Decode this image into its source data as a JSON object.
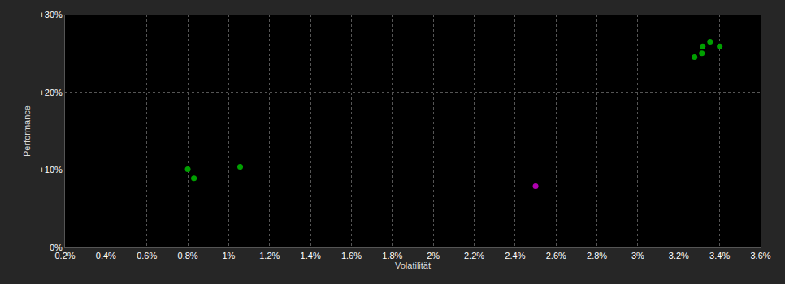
{
  "chart_data": {
    "type": "scatter",
    "x_label": "Volatilität",
    "y_label": "Performance",
    "series": [
      {
        "color": "#00a000",
        "marker": "circle",
        "x": [
          0.8,
          0.83,
          1.056,
          3.277,
          3.317,
          3.313,
          3.353,
          3.4
        ],
        "values": [
          10.1,
          8.9,
          10.4,
          24.5,
          25.9,
          25.0,
          26.5,
          25.9
        ]
      },
      {
        "color": "#b000b0",
        "marker": "circle",
        "x": [
          2.5
        ],
        "values": [
          7.9
        ]
      }
    ],
    "xlim": [
      0.2,
      3.6
    ],
    "xticks": [
      {
        "value": 0.2,
        "label": "0.2%"
      },
      {
        "value": 0.4,
        "label": "0.4%"
      },
      {
        "value": 0.6,
        "label": "0.6%"
      },
      {
        "value": 0.8,
        "label": "0.8%"
      },
      {
        "value": 1.0,
        "label": "1%"
      },
      {
        "value": 1.2,
        "label": "1.2%"
      },
      {
        "value": 1.4,
        "label": "1.4%"
      },
      {
        "value": 1.6,
        "label": "1.6%"
      },
      {
        "value": 1.8,
        "label": "1.8%"
      },
      {
        "value": 2.0,
        "label": "2%"
      },
      {
        "value": 2.2,
        "label": "2.2%"
      },
      {
        "value": 2.4,
        "label": "2.4%"
      },
      {
        "value": 2.6,
        "label": "2.6%"
      },
      {
        "value": 2.8,
        "label": "2.8%"
      },
      {
        "value": 3.0,
        "label": "3%"
      },
      {
        "value": 3.2,
        "label": "3.2%"
      },
      {
        "value": 3.4,
        "label": "3.4%"
      },
      {
        "value": 3.6,
        "label": "3.6%"
      }
    ],
    "ylim": [
      0,
      30
    ],
    "yticks": [
      {
        "value": 0,
        "label": "0%"
      },
      {
        "value": 10,
        "label": "+10%"
      },
      {
        "value": 20,
        "label": "+20%"
      },
      {
        "value": 30,
        "label": "+30%"
      }
    ],
    "grid": true
  }
}
